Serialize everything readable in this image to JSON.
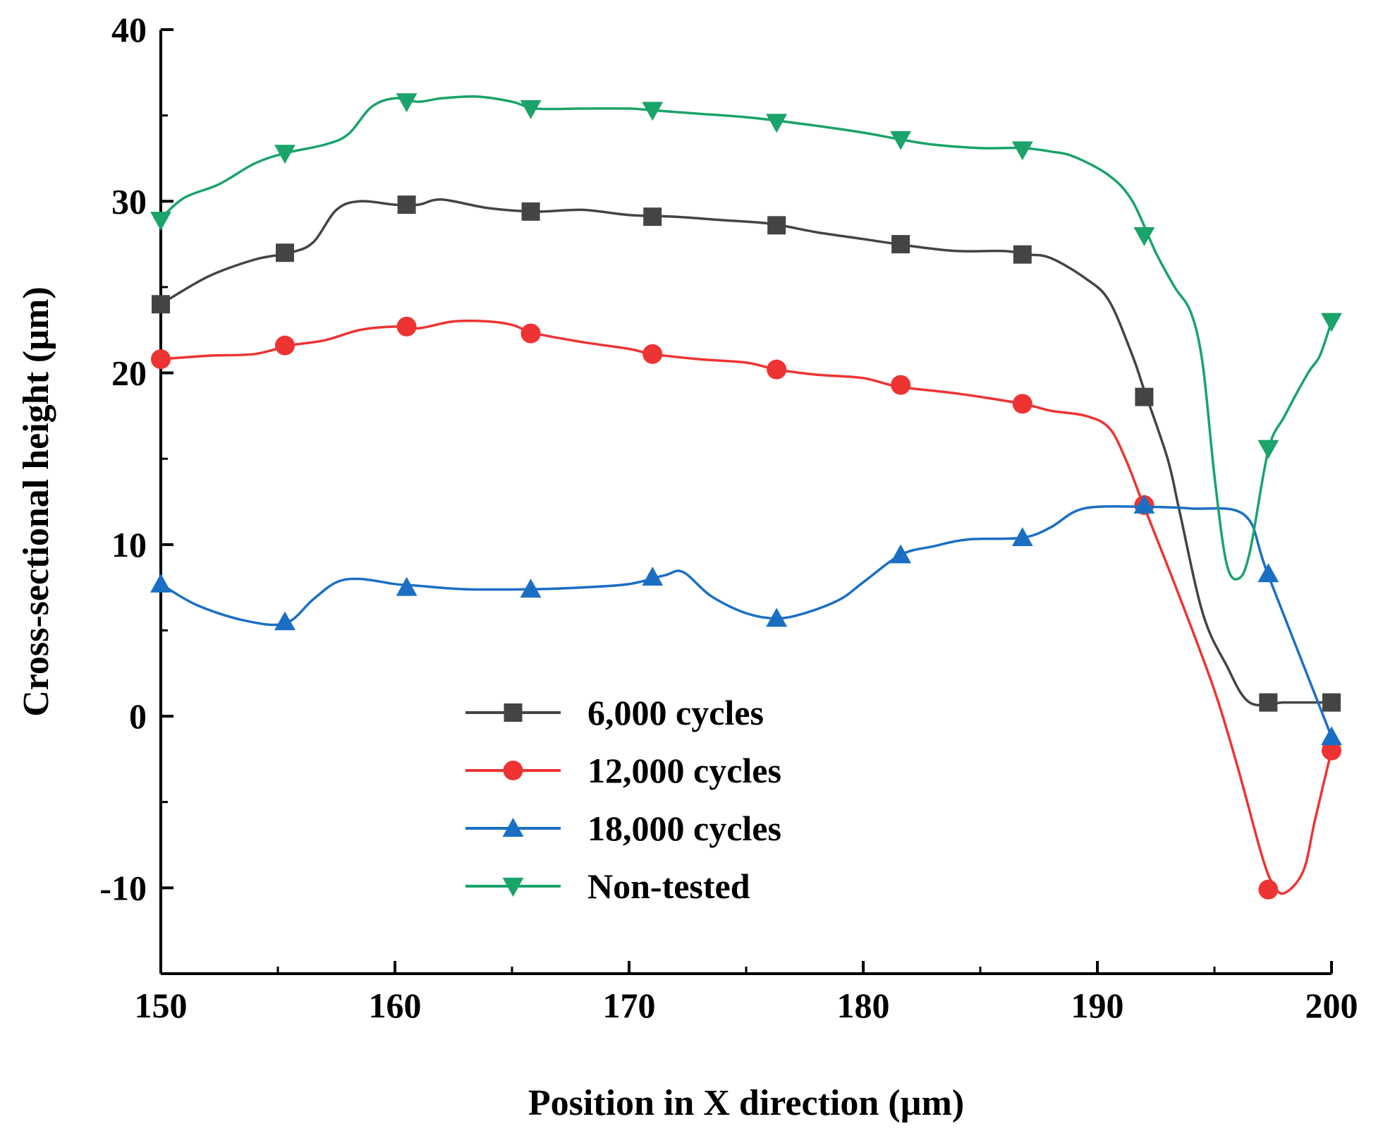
{
  "chart_data": {
    "type": "line",
    "xlabel": "Position in X direction (µm)",
    "ylabel": "Cross-sectional height (µm)",
    "xlim": [
      150,
      200
    ],
    "ylim": [
      -15,
      40
    ],
    "x_ticks": [
      150,
      160,
      170,
      180,
      190,
      200
    ],
    "x_tick_labels": [
      "150",
      "160",
      "170",
      "180",
      "190",
      "200"
    ],
    "y_ticks": [
      -10,
      0,
      10,
      20,
      30,
      40
    ],
    "y_tick_labels": [
      "-10",
      "0",
      "10",
      "20",
      "30",
      "40"
    ],
    "grid": false,
    "legend_position": "bottom-center",
    "series": [
      {
        "name": "6,000 cycles",
        "color": "#444444",
        "marker": "square",
        "curve": [
          [
            150,
            24.0
          ],
          [
            152,
            25.6
          ],
          [
            154,
            26.6
          ],
          [
            155.5,
            27.0
          ],
          [
            156.5,
            27.6
          ],
          [
            157.5,
            29.5
          ],
          [
            158.5,
            30.0
          ],
          [
            160,
            29.8
          ],
          [
            161,
            29.8
          ],
          [
            162,
            30.1
          ],
          [
            164,
            29.6
          ],
          [
            166,
            29.4
          ],
          [
            168,
            29.5
          ],
          [
            170,
            29.2
          ],
          [
            172,
            29.1
          ],
          [
            174,
            28.9
          ],
          [
            176,
            28.7
          ],
          [
            178,
            28.2
          ],
          [
            180,
            27.8
          ],
          [
            182,
            27.4
          ],
          [
            184,
            27.1
          ],
          [
            186,
            27.1
          ],
          [
            187,
            26.9
          ],
          [
            188,
            26.7
          ],
          [
            189.5,
            25.5
          ],
          [
            190.5,
            24.2
          ],
          [
            191.5,
            21.0
          ],
          [
            192,
            19.0
          ],
          [
            193,
            15.0
          ],
          [
            193.5,
            12.0
          ],
          [
            194.5,
            6.0
          ],
          [
            195.5,
            3.0
          ],
          [
            196.5,
            0.8
          ],
          [
            198,
            0.8
          ],
          [
            200,
            0.8
          ]
        ],
        "points": [
          [
            150,
            24.0
          ],
          [
            155.3,
            27.0
          ],
          [
            160.5,
            29.8
          ],
          [
            165.8,
            29.4
          ],
          [
            171,
            29.1
          ],
          [
            176.3,
            28.6
          ],
          [
            181.6,
            27.5
          ],
          [
            186.8,
            26.9
          ],
          [
            192,
            18.6
          ],
          [
            197.3,
            0.8
          ],
          [
            200,
            0.8
          ]
        ]
      },
      {
        "name": "12,000 cycles",
        "color": "#ee3333",
        "marker": "circle",
        "curve": [
          [
            150,
            20.8
          ],
          [
            152,
            21.0
          ],
          [
            154,
            21.1
          ],
          [
            155.5,
            21.6
          ],
          [
            157,
            21.9
          ],
          [
            158.5,
            22.5
          ],
          [
            160,
            22.7
          ],
          [
            161,
            22.6
          ],
          [
            162.5,
            23.0
          ],
          [
            164,
            23.0
          ],
          [
            165,
            22.8
          ],
          [
            166,
            22.3
          ],
          [
            168,
            21.8
          ],
          [
            170,
            21.4
          ],
          [
            171,
            21.1
          ],
          [
            173,
            20.8
          ],
          [
            175,
            20.6
          ],
          [
            176.3,
            20.2
          ],
          [
            178,
            19.9
          ],
          [
            180,
            19.7
          ],
          [
            181.5,
            19.2
          ],
          [
            184,
            18.8
          ],
          [
            186.8,
            18.2
          ],
          [
            188,
            17.8
          ],
          [
            189.5,
            17.5
          ],
          [
            190.5,
            16.8
          ],
          [
            191.2,
            15.0
          ],
          [
            192,
            12.2
          ],
          [
            193.5,
            7.0
          ],
          [
            195,
            1.5
          ],
          [
            196,
            -3.0
          ],
          [
            197,
            -8.0
          ],
          [
            197.5,
            -9.8
          ],
          [
            198,
            -10.3
          ],
          [
            198.8,
            -9.0
          ],
          [
            199.3,
            -6.0
          ],
          [
            200,
            -2.0
          ]
        ],
        "points": [
          [
            150,
            20.8
          ],
          [
            155.3,
            21.6
          ],
          [
            160.5,
            22.7
          ],
          [
            165.8,
            22.3
          ],
          [
            171,
            21.1
          ],
          [
            176.3,
            20.2
          ],
          [
            181.6,
            19.3
          ],
          [
            186.8,
            18.2
          ],
          [
            192,
            12.3
          ],
          [
            197.3,
            -10.1
          ],
          [
            200,
            -2.0
          ]
        ]
      },
      {
        "name": "18,000 cycles",
        "color": "#1a6fc4",
        "marker": "triangle-up",
        "curve": [
          [
            150,
            7.7
          ],
          [
            151.5,
            6.5
          ],
          [
            153.5,
            5.6
          ],
          [
            155.3,
            5.4
          ],
          [
            156.5,
            6.8
          ],
          [
            157.5,
            7.8
          ],
          [
            158.5,
            8.0
          ],
          [
            160,
            7.7
          ],
          [
            161,
            7.6
          ],
          [
            163,
            7.4
          ],
          [
            165.8,
            7.4
          ],
          [
            168,
            7.5
          ],
          [
            170,
            7.7
          ],
          [
            171.5,
            8.2
          ],
          [
            172.3,
            8.4
          ],
          [
            173.5,
            7.0
          ],
          [
            175,
            6.0
          ],
          [
            176.3,
            5.7
          ],
          [
            177.5,
            6.0
          ],
          [
            179,
            6.8
          ],
          [
            180,
            7.8
          ],
          [
            181.6,
            9.4
          ],
          [
            183,
            9.9
          ],
          [
            184.5,
            10.3
          ],
          [
            186.8,
            10.4
          ],
          [
            188,
            11.0
          ],
          [
            189,
            11.9
          ],
          [
            190,
            12.2
          ],
          [
            192,
            12.2
          ],
          [
            194,
            12.1
          ],
          [
            196.3,
            11.7
          ],
          [
            197.3,
            8.2
          ],
          [
            200,
            -1.2
          ]
        ],
        "points": [
          [
            150,
            7.7
          ],
          [
            155.3,
            5.5
          ],
          [
            160.5,
            7.5
          ],
          [
            165.8,
            7.4
          ],
          [
            171,
            8.1
          ],
          [
            176.3,
            5.7
          ],
          [
            181.6,
            9.4
          ],
          [
            186.8,
            10.4
          ],
          [
            192,
            12.3
          ],
          [
            197.3,
            8.3
          ],
          [
            200,
            -1.2
          ]
        ]
      },
      {
        "name": "Non-tested",
        "color": "#1aa36a",
        "marker": "triangle-down",
        "curve": [
          [
            150,
            29.0
          ],
          [
            151,
            30.2
          ],
          [
            152.5,
            31.0
          ],
          [
            154,
            32.2
          ],
          [
            155.3,
            32.8
          ],
          [
            157,
            33.3
          ],
          [
            158,
            33.9
          ],
          [
            159,
            35.5
          ],
          [
            160,
            36.0
          ],
          [
            161,
            35.8
          ],
          [
            162,
            36.0
          ],
          [
            163.5,
            36.1
          ],
          [
            165,
            35.8
          ],
          [
            166,
            35.4
          ],
          [
            168,
            35.4
          ],
          [
            170,
            35.4
          ],
          [
            171,
            35.3
          ],
          [
            173,
            35.1
          ],
          [
            175,
            34.9
          ],
          [
            176.3,
            34.7
          ],
          [
            178,
            34.4
          ],
          [
            180,
            34.0
          ],
          [
            181.6,
            33.6
          ],
          [
            183,
            33.3
          ],
          [
            185,
            33.1
          ],
          [
            186.8,
            33.1
          ],
          [
            188,
            32.9
          ],
          [
            189,
            32.6
          ],
          [
            190.5,
            31.5
          ],
          [
            191.5,
            30.0
          ],
          [
            192.5,
            27.0
          ],
          [
            193.3,
            25.0
          ],
          [
            194,
            23.5
          ],
          [
            194.5,
            20.5
          ],
          [
            195,
            14.0
          ],
          [
            195.5,
            9.0
          ],
          [
            196,
            8.0
          ],
          [
            196.5,
            9.5
          ],
          [
            197.3,
            15.5
          ],
          [
            198,
            17.5
          ],
          [
            199,
            20.0
          ],
          [
            199.5,
            21.0
          ],
          [
            200,
            23.0
          ]
        ],
        "points": [
          [
            150,
            28.9
          ],
          [
            155.3,
            32.8
          ],
          [
            160.5,
            35.8
          ],
          [
            165.8,
            35.4
          ],
          [
            171,
            35.3
          ],
          [
            176.3,
            34.6
          ],
          [
            181.6,
            33.6
          ],
          [
            186.8,
            33.0
          ],
          [
            192,
            28.0
          ],
          [
            197.3,
            15.6
          ],
          [
            200,
            23.0
          ]
        ]
      }
    ]
  }
}
